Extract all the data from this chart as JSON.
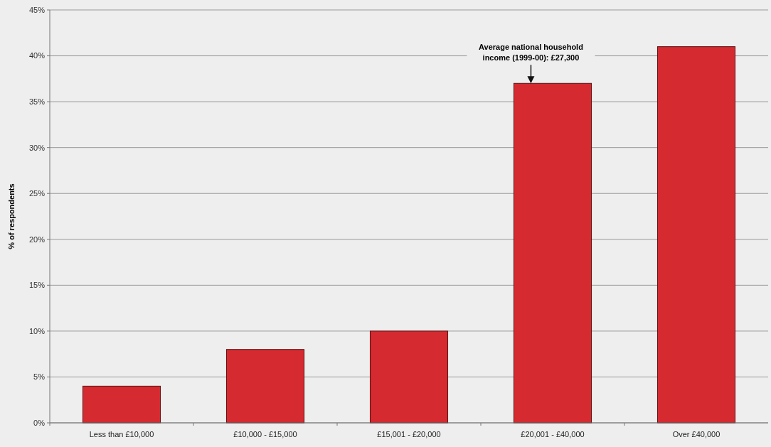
{
  "chart_data": {
    "type": "bar",
    "ylabel": "% of respondents",
    "categories": [
      "Less than £10,000",
      "£10,000 - £15,000",
      "£15,001 - £20,000",
      "£20,001 - £40,000",
      "Over £40,000"
    ],
    "values": [
      4,
      8,
      10,
      37,
      41
    ],
    "color": "#d42a30",
    "ylim": [
      0,
      45
    ],
    "yticks": [
      {
        "value": 0,
        "label": "0%"
      },
      {
        "value": 5,
        "label": "5%"
      },
      {
        "value": 10,
        "label": "10%"
      },
      {
        "value": 15,
        "label": "15%"
      },
      {
        "value": 20,
        "label": "20%"
      },
      {
        "value": 25,
        "label": "25%"
      },
      {
        "value": 30,
        "label": "30%"
      },
      {
        "value": 35,
        "label": "35%"
      },
      {
        "value": 40,
        "label": "40%"
      },
      {
        "value": 45,
        "label": "45%"
      }
    ],
    "grid": "y",
    "annotations": [
      {
        "text": "Average national household income (1999-00): £27,300",
        "x": "£20,001 - £40,000",
        "y": 37
      }
    ]
  }
}
